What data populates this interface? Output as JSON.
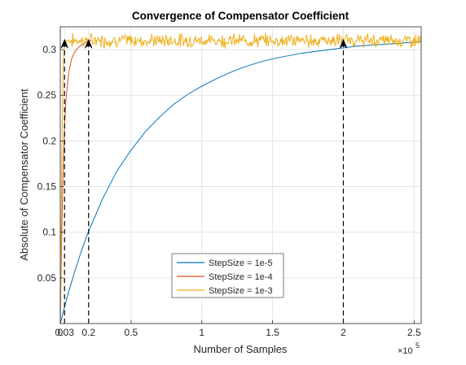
{
  "chart_data": {
    "type": "line",
    "title": "Convergence of Compensator Coefficient",
    "xlabel": "Number of Samples",
    "ylabel": "Absolute of Compensator Coefficient",
    "x_exponent_label": "×10",
    "x_exponent_power": "5",
    "xlim": [
      0,
      2.55
    ],
    "ylim": [
      0,
      0.325
    ],
    "x_scale_note": "x values in units of 1e5 samples",
    "grid": true,
    "legend_position": "bottom-center",
    "x_ticks": [
      {
        "value": 0,
        "label": "0"
      },
      {
        "value": 0.03,
        "label": "0.03"
      },
      {
        "value": 0.2,
        "label": "0.2"
      },
      {
        "value": 0.5,
        "label": "0.5"
      },
      {
        "value": 1,
        "label": "1"
      },
      {
        "value": 1.5,
        "label": "1.5"
      },
      {
        "value": 2,
        "label": "2"
      },
      {
        "value": 2.5,
        "label": "2.5"
      }
    ],
    "y_ticks": [
      {
        "value": 0.05,
        "label": "0.05"
      },
      {
        "value": 0.1,
        "label": "0.1"
      },
      {
        "value": 0.15,
        "label": "0.15"
      },
      {
        "value": 0.2,
        "label": "0.2"
      },
      {
        "value": 0.25,
        "label": "0.25"
      },
      {
        "value": 0.3,
        "label": "0.3"
      }
    ],
    "series": [
      {
        "name": "StepSize = 1e-5",
        "color": "#0072BD",
        "x": [
          0,
          0.05,
          0.1,
          0.15,
          0.2,
          0.3,
          0.4,
          0.5,
          0.6,
          0.7,
          0.8,
          0.9,
          1.0,
          1.1,
          1.2,
          1.3,
          1.4,
          1.5,
          1.6,
          1.7,
          1.8,
          1.9,
          2.0,
          2.1,
          2.2,
          2.3,
          2.4,
          2.55
        ],
        "y": [
          0.0,
          0.03,
          0.056,
          0.08,
          0.101,
          0.137,
          0.167,
          0.19,
          0.21,
          0.226,
          0.24,
          0.251,
          0.26,
          0.268,
          0.275,
          0.281,
          0.286,
          0.29,
          0.293,
          0.296,
          0.298,
          0.3,
          0.302,
          0.304,
          0.305,
          0.306,
          0.307,
          0.309
        ]
      },
      {
        "name": "StepSize = 1e-4",
        "color": "#D95319",
        "x": [
          0,
          0.005,
          0.01,
          0.02,
          0.03,
          0.04,
          0.06,
          0.08,
          0.1,
          0.12,
          0.14,
          0.16,
          0.18,
          0.2,
          0.22
        ],
        "y": [
          0.0,
          0.05,
          0.095,
          0.17,
          0.215,
          0.245,
          0.275,
          0.29,
          0.297,
          0.301,
          0.304,
          0.306,
          0.308,
          0.309,
          0.31
        ]
      },
      {
        "name": "StepSize = 1e-3",
        "color": "#EDB120",
        "x_start": 0.03,
        "x_end": 2.55,
        "y_initial_x": [
          0,
          0.01,
          0.02,
          0.03
        ],
        "y_initial": [
          0.0,
          0.17,
          0.28,
          0.31
        ],
        "steady_mean": 0.31,
        "noise_amplitude": 0.009
      }
    ],
    "annotations": [
      {
        "type": "arrow-dashed",
        "x": 0.03,
        "y": 0.31
      },
      {
        "type": "arrow-dashed",
        "x": 0.2,
        "y": 0.31
      },
      {
        "type": "arrow-dashed",
        "x": 2.0,
        "y": 0.31
      }
    ]
  }
}
